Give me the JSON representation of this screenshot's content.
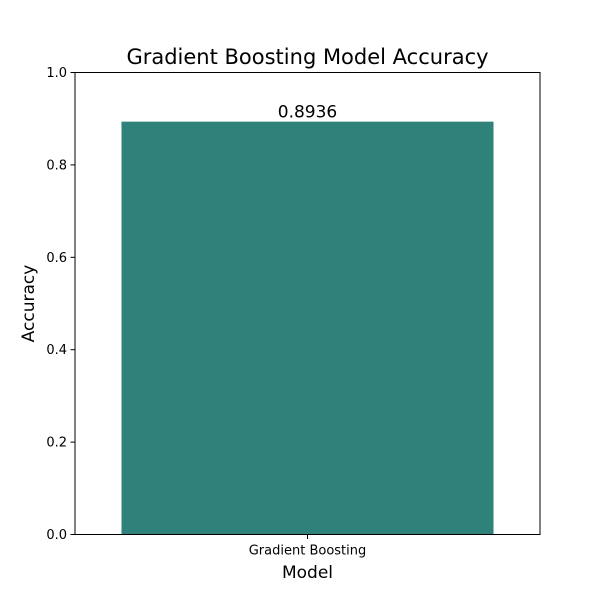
{
  "chart_data": {
    "type": "bar",
    "title": "Gradient Boosting Model Accuracy",
    "xlabel": "Model",
    "ylabel": "Accuracy",
    "categories": [
      "Gradient Boosting"
    ],
    "values": [
      0.8936
    ],
    "data_labels": [
      "0.8936"
    ],
    "ylim": [
      0,
      1.0
    ],
    "yticks": [
      {
        "value": 0.0,
        "label": "0.0"
      },
      {
        "value": 0.2,
        "label": "0.2"
      },
      {
        "value": 0.4,
        "label": "0.4"
      },
      {
        "value": 0.6,
        "label": "0.6"
      },
      {
        "value": 0.8,
        "label": "0.8"
      },
      {
        "value": 1.0,
        "label": "1.0"
      }
    ],
    "grid": false,
    "legend": "none",
    "bar_color": "#2e8279"
  }
}
